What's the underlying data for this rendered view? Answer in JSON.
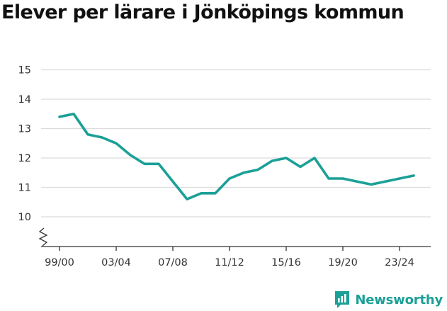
{
  "header": {
    "title": "Elever per lärare i Jönköpings kommun"
  },
  "brand": {
    "name": "Newsworthy",
    "icon": "newsworthy-logo-icon"
  },
  "colors": {
    "line": "#1ba097",
    "grid": "#dcdcdc",
    "text": "#333333",
    "brand": "#1ba097"
  },
  "chart_data": {
    "type": "line",
    "title": "Elever per lärare i Jönköpings kommun",
    "xlabel": "",
    "ylabel": "",
    "categories": [
      "99/00",
      "00/01",
      "01/02",
      "02/03",
      "03/04",
      "04/05",
      "05/06",
      "06/07",
      "07/08",
      "08/09",
      "09/10",
      "10/11",
      "11/12",
      "12/13",
      "13/14",
      "14/15",
      "15/16",
      "16/17",
      "17/18",
      "18/19",
      "19/20",
      "20/21",
      "21/22",
      "22/23",
      "23/24",
      "24/25"
    ],
    "series": [
      {
        "values": [
          13.4,
          13.5,
          12.8,
          12.7,
          12.5,
          12.1,
          11.8,
          11.8,
          11.2,
          10.6,
          10.8,
          10.8,
          11.3,
          11.5,
          11.6,
          11.9,
          12.0,
          11.7,
          12.0,
          11.3,
          11.3,
          11.2,
          11.1,
          11.2,
          11.3,
          11.4
        ]
      }
    ],
    "x_tick_labels": [
      "99/00",
      "03/04",
      "07/08",
      "11/12",
      "15/16",
      "19/20",
      "23/24"
    ],
    "y_ticks": [
      10,
      11,
      12,
      13,
      14,
      15
    ],
    "ylim": [
      9,
      15
    ],
    "y_axis_break": true,
    "grid": true,
    "legend": "none"
  }
}
